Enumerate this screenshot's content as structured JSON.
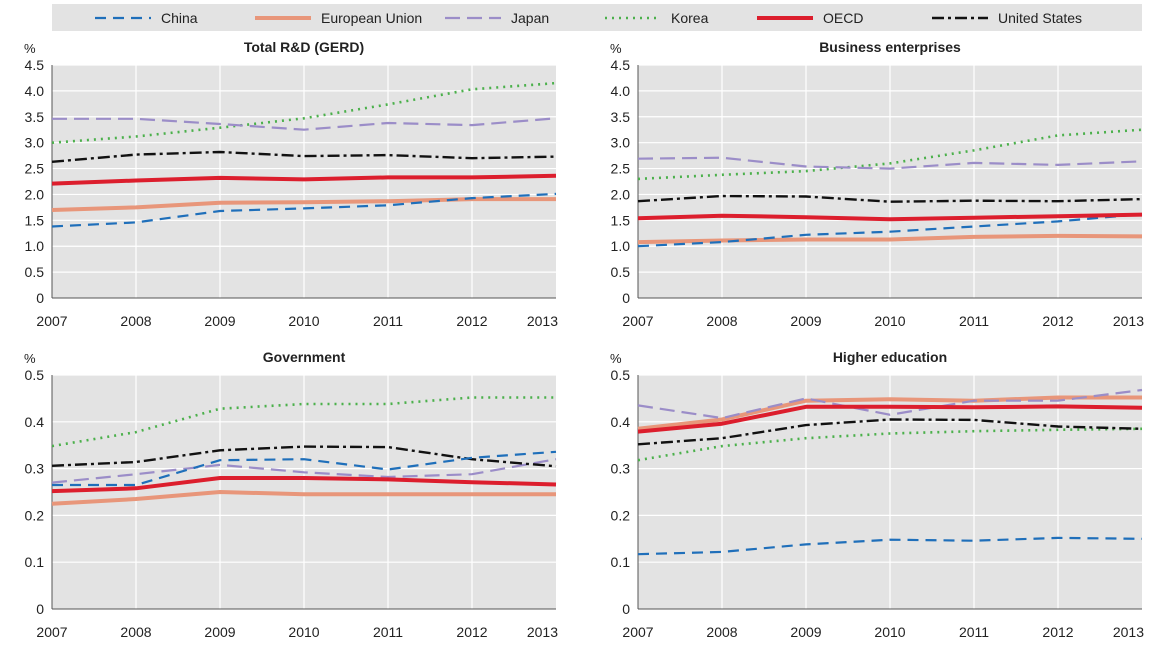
{
  "legend": [
    {
      "name": "China",
      "color": "#1f6fba",
      "style": "dash"
    },
    {
      "name": "European Union",
      "color": "#e8967a",
      "style": "solid-light"
    },
    {
      "name": "Japan",
      "color": "#9b8dc8",
      "style": "longdash"
    },
    {
      "name": "Korea",
      "color": "#4bb04b",
      "style": "dot"
    },
    {
      "name": "OECD",
      "color": "#dc1e2d",
      "style": "solid-bold"
    },
    {
      "name": "United States",
      "color": "#111111",
      "style": "dashdot"
    }
  ],
  "chart_data": [
    {
      "type": "line",
      "title": "Total R&D (GERD)",
      "ylabel": "%",
      "x": [
        "2007",
        "2008",
        "2009",
        "2010",
        "2011",
        "2012",
        "2013"
      ],
      "ylim": [
        0,
        4.5
      ],
      "yticks": [
        "0",
        "0.5",
        "1.0",
        "1.5",
        "2.0",
        "2.5",
        "3.0",
        "3.5",
        "4.0",
        "4.5"
      ],
      "grid": true,
      "series": [
        {
          "name": "China",
          "values": [
            1.38,
            1.46,
            1.68,
            1.73,
            1.79,
            1.93,
            2.01
          ]
        },
        {
          "name": "European Union",
          "values": [
            1.7,
            1.75,
            1.84,
            1.85,
            1.87,
            1.91,
            1.91
          ]
        },
        {
          "name": "Japan",
          "values": [
            3.46,
            3.46,
            3.36,
            3.25,
            3.38,
            3.34,
            3.47
          ]
        },
        {
          "name": "Korea",
          "values": [
            3.0,
            3.12,
            3.29,
            3.47,
            3.74,
            4.03,
            4.15
          ]
        },
        {
          "name": "OECD",
          "values": [
            2.21,
            2.27,
            2.32,
            2.29,
            2.33,
            2.33,
            2.36
          ]
        },
        {
          "name": "United States",
          "values": [
            2.63,
            2.77,
            2.82,
            2.74,
            2.76,
            2.7,
            2.73
          ]
        }
      ]
    },
    {
      "type": "line",
      "title": "Business enterprises",
      "ylabel": "%",
      "x": [
        "2007",
        "2008",
        "2009",
        "2010",
        "2011",
        "2012",
        "2013"
      ],
      "ylim": [
        0,
        4.5
      ],
      "yticks": [
        "0",
        "0.5",
        "1.0",
        "1.5",
        "2.0",
        "2.5",
        "3.0",
        "3.5",
        "4.0",
        "4.5"
      ],
      "grid": true,
      "series": [
        {
          "name": "China",
          "values": [
            1.0,
            1.08,
            1.22,
            1.28,
            1.38,
            1.48,
            1.62
          ]
        },
        {
          "name": "European Union",
          "values": [
            1.08,
            1.11,
            1.13,
            1.13,
            1.18,
            1.2,
            1.19
          ]
        },
        {
          "name": "Japan",
          "values": [
            2.69,
            2.71,
            2.54,
            2.5,
            2.61,
            2.57,
            2.64
          ]
        },
        {
          "name": "Korea",
          "values": [
            2.3,
            2.38,
            2.45,
            2.6,
            2.85,
            3.14,
            3.25
          ]
        },
        {
          "name": "OECD",
          "values": [
            1.54,
            1.59,
            1.56,
            1.52,
            1.55,
            1.58,
            1.61
          ]
        },
        {
          "name": "United States",
          "values": [
            1.87,
            1.97,
            1.96,
            1.86,
            1.88,
            1.87,
            1.91
          ]
        }
      ]
    },
    {
      "type": "line",
      "title": "Government",
      "ylabel": "%",
      "x": [
        "2007",
        "2008",
        "2009",
        "2010",
        "2011",
        "2012",
        "2013"
      ],
      "ylim": [
        0,
        0.5
      ],
      "yticks": [
        "0",
        "0.1",
        "0.2",
        "0.3",
        "0.4",
        "0.5"
      ],
      "grid": true,
      "series": [
        {
          "name": "China",
          "values": [
            0.265,
            0.265,
            0.318,
            0.32,
            0.298,
            0.323,
            0.336
          ]
        },
        {
          "name": "European Union",
          "values": [
            0.225,
            0.235,
            0.25,
            0.245,
            0.245,
            0.245,
            0.245
          ]
        },
        {
          "name": "Japan",
          "values": [
            0.27,
            0.288,
            0.308,
            0.292,
            0.282,
            0.288,
            0.32
          ]
        },
        {
          "name": "Korea",
          "values": [
            0.348,
            0.378,
            0.428,
            0.438,
            0.438,
            0.452,
            0.452
          ]
        },
        {
          "name": "OECD",
          "values": [
            0.252,
            0.258,
            0.28,
            0.28,
            0.277,
            0.271,
            0.266
          ]
        },
        {
          "name": "United States",
          "values": [
            0.306,
            0.314,
            0.339,
            0.347,
            0.346,
            0.32,
            0.305
          ]
        }
      ]
    },
    {
      "type": "line",
      "title": "Higher education",
      "ylabel": "%",
      "x": [
        "2007",
        "2008",
        "2009",
        "2010",
        "2011",
        "2012",
        "2013"
      ],
      "ylim": [
        0,
        0.5
      ],
      "yticks": [
        "0",
        "0.1",
        "0.2",
        "0.3",
        "0.4",
        "0.5"
      ],
      "grid": true,
      "series": [
        {
          "name": "China",
          "values": [
            0.117,
            0.122,
            0.138,
            0.148,
            0.146,
            0.152,
            0.15
          ]
        },
        {
          "name": "European Union",
          "values": [
            0.385,
            0.405,
            0.445,
            0.448,
            0.445,
            0.452,
            0.452
          ]
        },
        {
          "name": "Japan",
          "values": [
            0.435,
            0.408,
            0.45,
            0.415,
            0.445,
            0.445,
            0.468
          ]
        },
        {
          "name": "Korea",
          "values": [
            0.318,
            0.348,
            0.365,
            0.375,
            0.38,
            0.383,
            0.385
          ]
        },
        {
          "name": "OECD",
          "values": [
            0.379,
            0.396,
            0.432,
            0.432,
            0.431,
            0.433,
            0.43
          ]
        },
        {
          "name": "United States",
          "values": [
            0.352,
            0.365,
            0.393,
            0.405,
            0.404,
            0.39,
            0.385
          ]
        }
      ]
    }
  ]
}
